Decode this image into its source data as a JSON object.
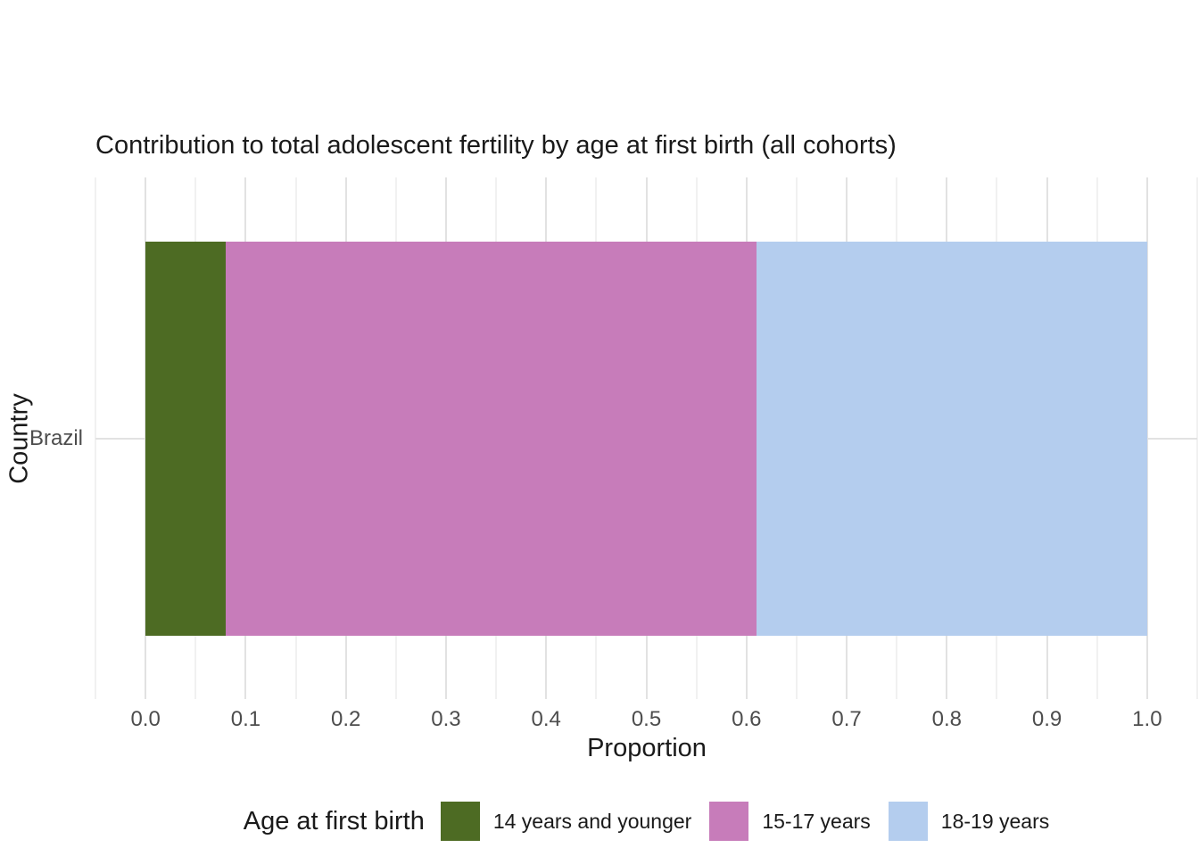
{
  "chart_data": {
    "type": "bar",
    "orientation": "horizontal",
    "stacked": true,
    "title": "Contribution to total adolescent fertility by age at first birth (all cohorts)",
    "xlabel": "Proportion",
    "ylabel": "Country",
    "categories": [
      "Brazil"
    ],
    "series": [
      {
        "name": "14 years and younger",
        "color": "#4d6b23",
        "values": [
          0.08
        ]
      },
      {
        "name": "15-17 years",
        "color": "#c77cba",
        "values": [
          0.53
        ]
      },
      {
        "name": "18-19 years",
        "color": "#b4cdee",
        "values": [
          0.39
        ]
      }
    ],
    "xlim": [
      -0.05,
      1.05
    ],
    "x_major_ticks": [
      0.0,
      0.1,
      0.2,
      0.3,
      0.4,
      0.5,
      0.6,
      0.7,
      0.8,
      0.9,
      1.0
    ],
    "x_tick_labels": [
      "0.0",
      "0.1",
      "0.2",
      "0.3",
      "0.4",
      "0.5",
      "0.6",
      "0.7",
      "0.8",
      "0.9",
      "1.0"
    ],
    "x_minor_ticks": [
      -0.05,
      0.05,
      0.15,
      0.25,
      0.35,
      0.45,
      0.55,
      0.65,
      0.75,
      0.85,
      0.95,
      1.05
    ],
    "grid": "on",
    "legend_title": "Age at first birth",
    "legend_position": "bottom"
  },
  "colors": {
    "background": "#ffffff",
    "grid_major": "#e2e2e2",
    "grid_minor": "#f1f1f1",
    "tick_text": "#4d4d4d",
    "main_text": "#1a1a1a"
  }
}
